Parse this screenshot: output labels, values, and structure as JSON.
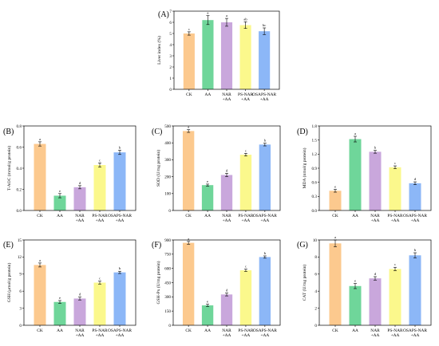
{
  "colors": {
    "CK": "#fcc98e",
    "AA": "#6fd69a",
    "NAR": "#c9a7dc",
    "PS": "#fbf88c",
    "OSAPS": "#8cb7f7"
  },
  "chart_data": [
    {
      "type": "bar",
      "panel": "(A)",
      "categories": [
        [
          "CK"
        ],
        [
          "AA"
        ],
        [
          "NAR",
          "+AA"
        ],
        [
          "PS-NAR",
          "+AA"
        ],
        [
          "OSAPS-NAR",
          "+AA"
        ]
      ],
      "values": [
        5.0,
        6.2,
        6.0,
        5.75,
        5.2
      ],
      "errors": [
        0.15,
        0.4,
        0.35,
        0.3,
        0.3
      ],
      "letters": [
        "c",
        "a",
        "a",
        "ab",
        "bc"
      ],
      "ylabel": "Liver index (%)",
      "ylim": [
        0,
        7
      ],
      "yticks": [
        0,
        1,
        2,
        3,
        4,
        5,
        6,
        7
      ]
    },
    {
      "type": "bar",
      "panel": "(B)",
      "categories": [
        [
          "CK"
        ],
        [
          "AA"
        ],
        [
          "NAR",
          "+AA"
        ],
        [
          "PS-NAR",
          "+AA"
        ],
        [
          "OSAPS-NAR",
          "+AA"
        ]
      ],
      "values": [
        0.63,
        0.14,
        0.22,
        0.43,
        0.55
      ],
      "errors": [
        0.02,
        0.02,
        0.015,
        0.02,
        0.02
      ],
      "letters": [
        "a",
        "e",
        "d",
        "c",
        "b"
      ],
      "ylabel": "T-AOC (mmol/g protein)",
      "ylim": [
        0,
        0.8
      ],
      "yticks": [
        0,
        0.2,
        0.4,
        0.6,
        0.8
      ],
      "yticklabels": [
        "0.0",
        "0.2",
        "0.4",
        "0.6",
        "0.8"
      ]
    },
    {
      "type": "bar",
      "panel": "(C)",
      "categories": [
        [
          "CK"
        ],
        [
          "AA"
        ],
        [
          "NAR",
          "+AA"
        ],
        [
          "PS-NAR",
          "+AA"
        ],
        [
          "OSAPS-NAR",
          "+AA"
        ]
      ],
      "values": [
        470,
        150,
        210,
        330,
        390
      ],
      "errors": [
        8,
        6,
        10,
        8,
        8
      ],
      "letters": [
        "a",
        "e",
        "d",
        "c",
        "b"
      ],
      "ylabel": "SOD (U/mg protein)",
      "ylim": [
        0,
        500
      ],
      "yticks": [
        0,
        100,
        200,
        300,
        400,
        500
      ]
    },
    {
      "type": "bar",
      "panel": "(D)",
      "categories": [
        [
          "CK"
        ],
        [
          "AA"
        ],
        [
          "NAR",
          "+AA"
        ],
        [
          "PS-NAR",
          "+AA"
        ],
        [
          "OSAPS-NAR",
          "+AA"
        ]
      ],
      "values": [
        0.42,
        1.52,
        1.25,
        0.92,
        0.58
      ],
      "errors": [
        0.03,
        0.06,
        0.03,
        0.03,
        0.03
      ],
      "letters": [
        "e",
        "a",
        "b",
        "c",
        "d"
      ],
      "ylabel": "MDA (nmol/g protein)",
      "ylim": [
        0,
        1.8
      ],
      "yticks": [
        0,
        0.3,
        0.6,
        0.9,
        1.2,
        1.5,
        1.8
      ],
      "yticklabels": [
        "0.0",
        "0.3",
        "0.6",
        "0.9",
        "1.2",
        "1.5",
        "1.8"
      ]
    },
    {
      "type": "bar",
      "panel": "(E)",
      "categories": [
        [
          "CK"
        ],
        [
          "AA"
        ],
        [
          "NAR",
          "+AA"
        ],
        [
          "PS-NAR",
          "+AA"
        ],
        [
          "OSAPS-NAR",
          "+AA"
        ]
      ],
      "values": [
        10.6,
        4.1,
        4.7,
        7.5,
        9.3
      ],
      "errors": [
        0.35,
        0.25,
        0.25,
        0.25,
        0.2
      ],
      "letters": [
        "a",
        "e",
        "d",
        "c",
        "b"
      ],
      "ylabel": "GSH (μmol/g protein)",
      "ylim": [
        0,
        15
      ],
      "yticks": [
        0,
        3,
        6,
        9,
        12,
        15
      ]
    },
    {
      "type": "bar",
      "panel": "(F)",
      "categories": [
        [
          "CK"
        ],
        [
          "AA"
        ],
        [
          "NAR",
          "+AA"
        ],
        [
          "PS-NAR",
          "+AA"
        ],
        [
          "OSAPS-NAR",
          "+AA"
        ]
      ],
      "values": [
        870,
        210,
        325,
        580,
        720
      ],
      "errors": [
        15,
        12,
        15,
        12,
        12
      ],
      "letters": [
        "a",
        "e",
        "d",
        "c",
        "b"
      ],
      "ylabel": "GSH-Px (U/mg protein)",
      "ylim": [
        0,
        900
      ],
      "yticks": [
        0,
        150,
        300,
        450,
        600,
        750,
        900
      ]
    },
    {
      "type": "bar",
      "panel": "(G)",
      "categories": [
        [
          "CK"
        ],
        [
          "AA"
        ],
        [
          "NAR",
          "+AA"
        ],
        [
          "PS-NAR",
          "+AA"
        ],
        [
          "OSAPS-NAR",
          "+AA"
        ]
      ],
      "values": [
        9.6,
        4.6,
        5.5,
        6.6,
        8.2
      ],
      "errors": [
        0.4,
        0.3,
        0.2,
        0.2,
        0.3
      ],
      "letters": [
        "a",
        "e",
        "d",
        "c",
        "b"
      ],
      "ylabel": "CAT (U/mg protein)",
      "ylim": [
        0,
        10
      ],
      "yticks": [
        0,
        2,
        4,
        6,
        8,
        10
      ]
    }
  ]
}
